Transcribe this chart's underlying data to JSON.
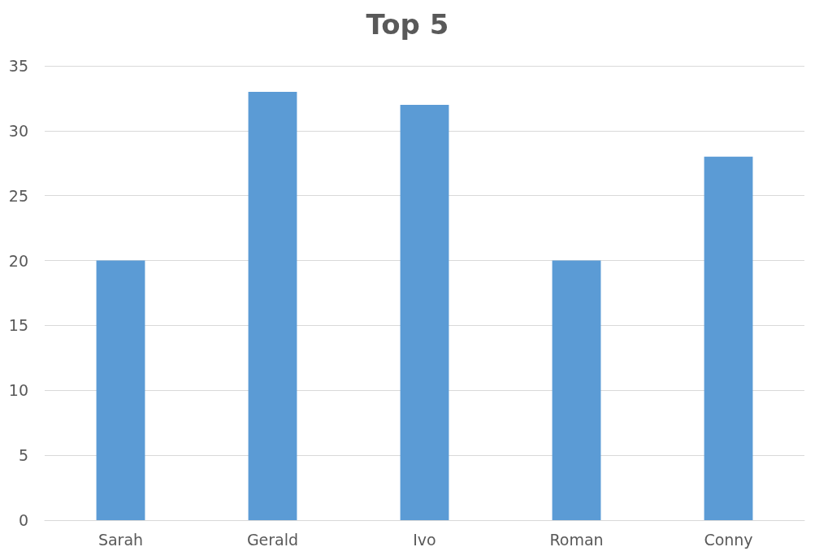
{
  "chart_data": {
    "type": "bar",
    "title": "Top 5",
    "categories": [
      "Sarah",
      "Gerald",
      "Ivo",
      "Roman",
      "Conny"
    ],
    "values": [
      20,
      33,
      32,
      20,
      28
    ],
    "color": "#5b9bd5",
    "ylim": [
      0,
      35
    ],
    "yticks": [
      0,
      5,
      10,
      15,
      20,
      25,
      30,
      35
    ],
    "grid": "y"
  }
}
